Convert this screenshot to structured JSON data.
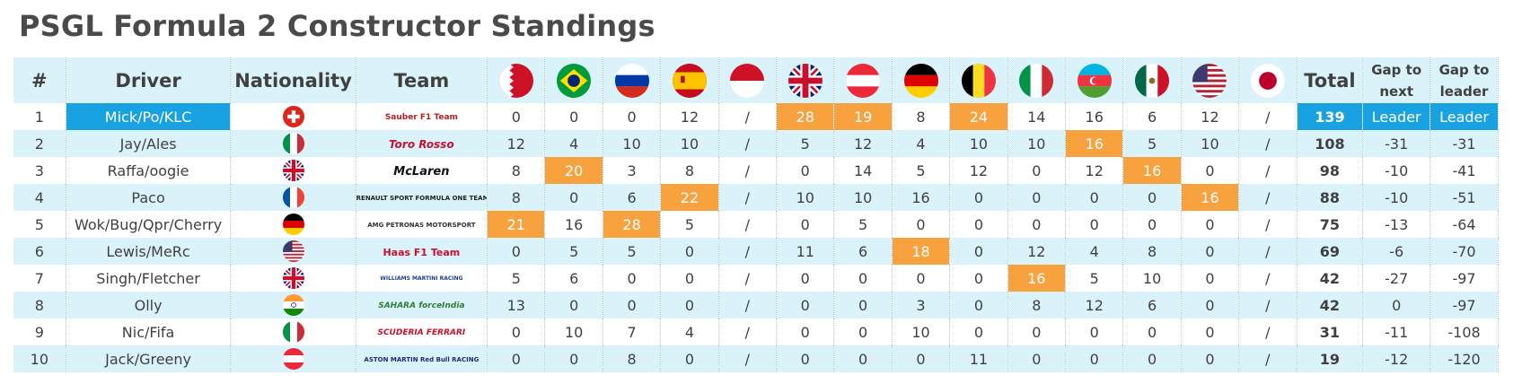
{
  "title": "PSGL Formula 2 Constructor Standings",
  "headers": {
    "pos": "#",
    "driver": "Driver",
    "nationality": "Nationality",
    "team": "Team",
    "total": "Total",
    "gap_next": "Gap to next",
    "gap_leader": "Gap to leader"
  },
  "race_flags": [
    "bahrain-flag-icon",
    "brazil-flag-icon",
    "russia-flag-icon",
    "spain-flag-icon",
    "monaco-flag-icon",
    "uk-flag-icon",
    "austria-flag-icon",
    "germany-flag-icon",
    "belgium-flag-icon",
    "italy-flag-icon",
    "azerbaijan-flag-icon",
    "mexico-flag-icon",
    "usa-flag-icon",
    "japan-flag-icon"
  ],
  "colors": {
    "header_bg": "#daf3fb",
    "stripe_bg": "#daf3fb",
    "highlight": "#f7a23f",
    "leader_blue": "#19a2e1"
  },
  "rows": [
    {
      "pos": "1",
      "driver": "Mick/Po/KLC",
      "nationality": "switzerland-flag-icon",
      "team": "Sauber F1 Team",
      "results": [
        "0",
        "0",
        "0",
        "12",
        "/",
        "28",
        "19",
        "8",
        "24",
        "14",
        "16",
        "6",
        "12",
        "/"
      ],
      "highlight": [
        5,
        6,
        8
      ],
      "total": "139",
      "gap_next": "Leader",
      "gap_leader": "Leader"
    },
    {
      "pos": "2",
      "driver": "Jay/Ales",
      "nationality": "italy-flag-icon",
      "team": "Toro Rosso",
      "results": [
        "12",
        "4",
        "10",
        "10",
        "/",
        "5",
        "12",
        "4",
        "10",
        "10",
        "16",
        "5",
        "10",
        "/"
      ],
      "highlight": [
        10
      ],
      "total": "108",
      "gap_next": "-31",
      "gap_leader": "-31"
    },
    {
      "pos": "3",
      "driver": "Raffa/oogie",
      "nationality": "uk-flag-icon",
      "team": "McLaren",
      "results": [
        "8",
        "20",
        "3",
        "8",
        "/",
        "0",
        "14",
        "5",
        "12",
        "0",
        "12",
        "16",
        "0",
        "/"
      ],
      "highlight": [
        1,
        11
      ],
      "total": "98",
      "gap_next": "-10",
      "gap_leader": "-41"
    },
    {
      "pos": "4",
      "driver": "Paco",
      "nationality": "france-flag-icon",
      "team": "RENAULT SPORT FORMULA ONE TEAM",
      "results": [
        "8",
        "0",
        "6",
        "22",
        "/",
        "10",
        "10",
        "16",
        "0",
        "0",
        "0",
        "0",
        "16",
        "/"
      ],
      "highlight": [
        3,
        12
      ],
      "total": "88",
      "gap_next": "-10",
      "gap_leader": "-51"
    },
    {
      "pos": "5",
      "driver": "Wok/Bug/Qpr/Cherry",
      "nationality": "germany-flag-icon",
      "team": "AMG PETRONAS MOTORSPORT",
      "results": [
        "21",
        "16",
        "28",
        "5",
        "/",
        "0",
        "5",
        "0",
        "0",
        "0",
        "0",
        "0",
        "0",
        "/"
      ],
      "highlight": [
        0,
        2
      ],
      "total": "75",
      "gap_next": "-13",
      "gap_leader": "-64"
    },
    {
      "pos": "6",
      "driver": "Lewis/MeRc",
      "nationality": "usa-flag-icon",
      "team": "Haas F1 Team",
      "results": [
        "0",
        "5",
        "5",
        "0",
        "/",
        "11",
        "6",
        "18",
        "0",
        "12",
        "4",
        "8",
        "0",
        "/"
      ],
      "highlight": [
        7
      ],
      "total": "69",
      "gap_next": "-6",
      "gap_leader": "-70"
    },
    {
      "pos": "7",
      "driver": "Singh/Fletcher",
      "nationality": "uk-flag-icon",
      "team": "WILLIAMS MARTINI RACING",
      "results": [
        "5",
        "6",
        "0",
        "0",
        "/",
        "0",
        "0",
        "0",
        "0",
        "16",
        "5",
        "10",
        "0",
        "/"
      ],
      "highlight": [
        9
      ],
      "total": "42",
      "gap_next": "-27",
      "gap_leader": "-97"
    },
    {
      "pos": "8",
      "driver": "Olly",
      "nationality": "india-flag-icon",
      "team": "SAHARA forceIndia",
      "results": [
        "13",
        "0",
        "0",
        "0",
        "/",
        "0",
        "0",
        "3",
        "0",
        "8",
        "12",
        "6",
        "0",
        "/"
      ],
      "highlight": [],
      "total": "42",
      "gap_next": "0",
      "gap_leader": "-97"
    },
    {
      "pos": "9",
      "driver": "Nic/Fifa",
      "nationality": "italy-flag-icon",
      "team": "SCUDERIA FERRARI",
      "results": [
        "0",
        "10",
        "7",
        "4",
        "/",
        "0",
        "0",
        "10",
        "0",
        "0",
        "0",
        "0",
        "0",
        "/"
      ],
      "highlight": [],
      "total": "31",
      "gap_next": "-11",
      "gap_leader": "-108"
    },
    {
      "pos": "10",
      "driver": "Jack/Greeny",
      "nationality": "austria-flag-icon",
      "team": "ASTON MARTIN Red Bull RACING",
      "results": [
        "0",
        "0",
        "8",
        "0",
        "/",
        "0",
        "0",
        "0",
        "11",
        "0",
        "0",
        "0",
        "0",
        "/"
      ],
      "highlight": [],
      "total": "19",
      "gap_next": "-12",
      "gap_leader": "-120"
    }
  ]
}
